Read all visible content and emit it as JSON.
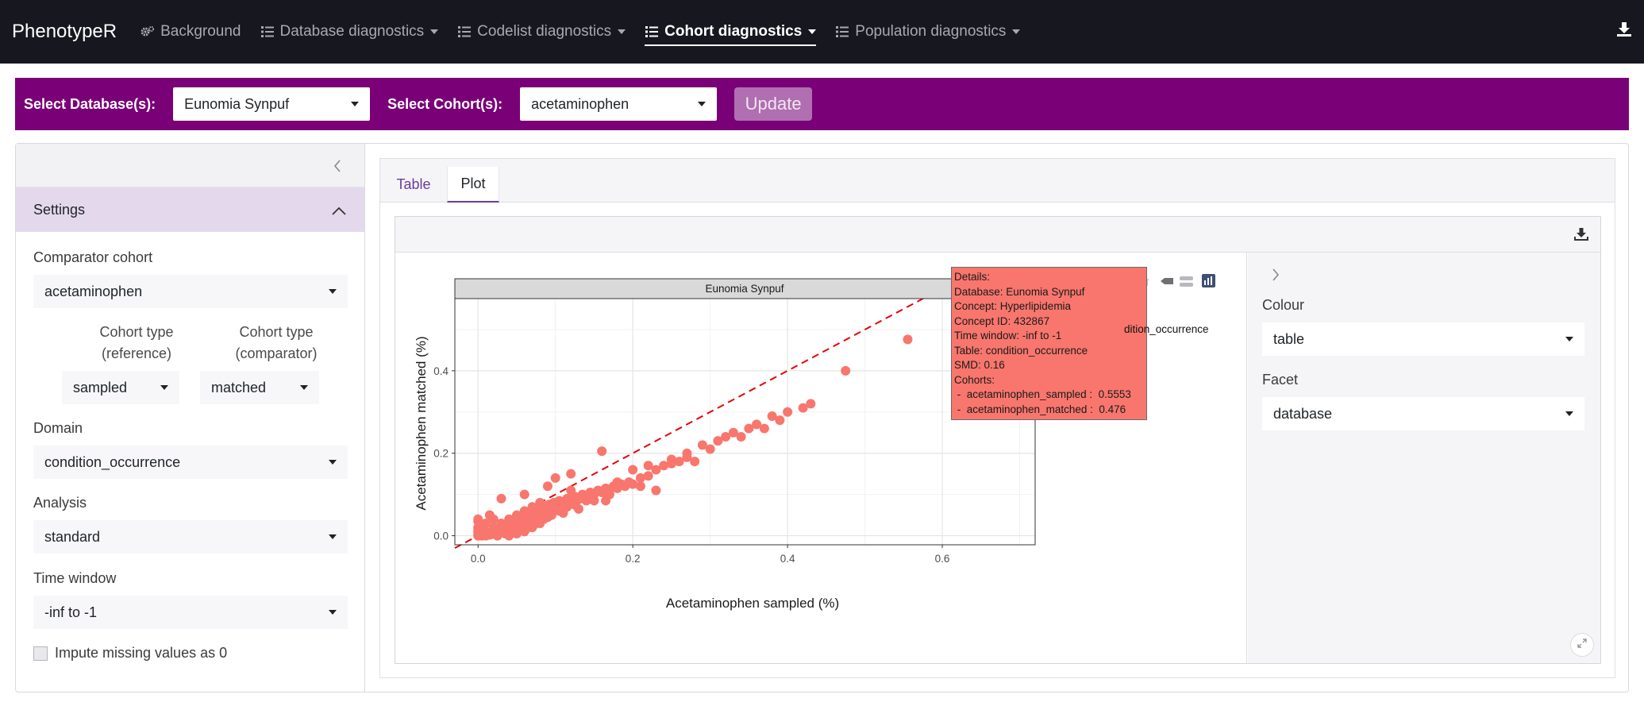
{
  "navbar": {
    "brand": "PhenotypeR",
    "items": [
      {
        "label": "Background",
        "icon": "gears-icon",
        "active": false,
        "dropdown": false
      },
      {
        "label": "Database diagnostics",
        "icon": "list-icon",
        "active": false,
        "dropdown": true
      },
      {
        "label": "Codelist diagnostics",
        "icon": "list-icon",
        "active": false,
        "dropdown": true
      },
      {
        "label": "Cohort diagnostics",
        "icon": "list-icon",
        "active": true,
        "dropdown": true
      },
      {
        "label": "Population diagnostics",
        "icon": "list-icon",
        "active": false,
        "dropdown": true
      }
    ],
    "download_icon": "download-icon"
  },
  "filters": {
    "database_label": "Select Database(s):",
    "database_value": "Eunomia Synpuf",
    "cohort_label": "Select Cohort(s):",
    "cohort_value": "acetaminophen",
    "update_label": "Update"
  },
  "sidebar": {
    "settings_title": "Settings",
    "comparator_label": "Comparator cohort",
    "comparator_value": "acetaminophen",
    "type_ref_label_1": "Cohort type",
    "type_ref_label_2": "(reference)",
    "type_ref_value": "sampled",
    "type_cmp_label_1": "Cohort type",
    "type_cmp_label_2": "(comparator)",
    "type_cmp_value": "matched",
    "domain_label": "Domain",
    "domain_value": "condition_occurrence",
    "analysis_label": "Analysis",
    "analysis_value": "standard",
    "timewindow_label": "Time window",
    "timewindow_value": "-inf to -1",
    "impute_label": "Impute missing values as 0"
  },
  "tabs": [
    {
      "label": "Table",
      "active": false
    },
    {
      "label": "Plot",
      "active": true
    }
  ],
  "plot_controls": {
    "colour_label": "Colour",
    "colour_value": "table",
    "facet_label": "Facet",
    "facet_value": "database"
  },
  "tooltip": {
    "lines": [
      "Details:",
      "Database: Eunomia Synpuf",
      "Concept: Hyperlipidemia",
      "Concept ID: 432867",
      "Time window: -inf to -1",
      "Table: condition_occurrence",
      "SMD: 0.16",
      "Cohorts:",
      " -  acetaminophen_sampled :  0.5553",
      " -  acetaminophen_matched :  0.476"
    ]
  },
  "legend_partial": "dition_occurrence",
  "chart_data": {
    "type": "scatter",
    "facet_label": "Eunomia Synpuf",
    "xlabel": "Acetaminophen sampled (%)",
    "ylabel": "Acetaminophen matched (%)",
    "x_ticks": [
      "0.0",
      "0.2",
      "0.4",
      "0.6"
    ],
    "y_ticks": [
      "0.0",
      "0.2",
      "0.4"
    ],
    "xlim": [
      -0.03,
      0.72
    ],
    "ylim": [
      -0.022,
      0.575
    ],
    "color": "#f8766d",
    "reference_line": {
      "type": "identity",
      "style": "dashed",
      "color": "#e8000b"
    },
    "points": [
      [
        0.0,
        0.0
      ],
      [
        0.0,
        0.005
      ],
      [
        0.0,
        0.01
      ],
      [
        0.0,
        0.015
      ],
      [
        0.0,
        0.02
      ],
      [
        0.002,
        0.025
      ],
      [
        0.003,
        0.03
      ],
      [
        0.0,
        0.035
      ],
      [
        0.0,
        0.04
      ],
      [
        0.005,
        0.0
      ],
      [
        0.008,
        0.003
      ],
      [
        0.01,
        0.0
      ],
      [
        0.012,
        0.006
      ],
      [
        0.015,
        0.002
      ],
      [
        0.018,
        0.01
      ],
      [
        0.02,
        0.004
      ],
      [
        0.022,
        0.012
      ],
      [
        0.025,
        0.008
      ],
      [
        0.028,
        0.015
      ],
      [
        0.03,
        0.01
      ],
      [
        0.032,
        0.02
      ],
      [
        0.035,
        0.012
      ],
      [
        0.038,
        0.025
      ],
      [
        0.04,
        0.018
      ],
      [
        0.042,
        0.03
      ],
      [
        0.045,
        0.022
      ],
      [
        0.048,
        0.035
      ],
      [
        0.05,
        0.028
      ],
      [
        0.052,
        0.04
      ],
      [
        0.055,
        0.032
      ],
      [
        0.058,
        0.045
      ],
      [
        0.06,
        0.036
      ],
      [
        0.062,
        0.05
      ],
      [
        0.065,
        0.04
      ],
      [
        0.068,
        0.055
      ],
      [
        0.07,
        0.045
      ],
      [
        0.072,
        0.06
      ],
      [
        0.075,
        0.05
      ],
      [
        0.078,
        0.062
      ],
      [
        0.08,
        0.055
      ],
      [
        0.082,
        0.068
      ],
      [
        0.085,
        0.058
      ],
      [
        0.088,
        0.072
      ],
      [
        0.09,
        0.062
      ],
      [
        0.092,
        0.076
      ],
      [
        0.095,
        0.066
      ],
      [
        0.098,
        0.08
      ],
      [
        0.1,
        0.07
      ],
      [
        0.105,
        0.085
      ],
      [
        0.11,
        0.075
      ],
      [
        0.115,
        0.09
      ],
      [
        0.12,
        0.08
      ],
      [
        0.125,
        0.095
      ],
      [
        0.13,
        0.088
      ],
      [
        0.135,
        0.1
      ],
      [
        0.14,
        0.092
      ],
      [
        0.145,
        0.105
      ],
      [
        0.15,
        0.1
      ],
      [
        0.155,
        0.11
      ],
      [
        0.16,
        0.105
      ],
      [
        0.165,
        0.115
      ],
      [
        0.17,
        0.11
      ],
      [
        0.175,
        0.12
      ],
      [
        0.18,
        0.115
      ],
      [
        0.185,
        0.125
      ],
      [
        0.19,
        0.12
      ],
      [
        0.195,
        0.13
      ],
      [
        0.2,
        0.125
      ],
      [
        0.21,
        0.14
      ],
      [
        0.22,
        0.145
      ],
      [
        0.23,
        0.16
      ],
      [
        0.24,
        0.17
      ],
      [
        0.25,
        0.175
      ],
      [
        0.26,
        0.18
      ],
      [
        0.27,
        0.19
      ],
      [
        0.28,
        0.18
      ],
      [
        0.29,
        0.22
      ],
      [
        0.3,
        0.21
      ],
      [
        0.31,
        0.23
      ],
      [
        0.32,
        0.24
      ],
      [
        0.33,
        0.25
      ],
      [
        0.34,
        0.24
      ],
      [
        0.35,
        0.26
      ],
      [
        0.36,
        0.27
      ],
      [
        0.37,
        0.26
      ],
      [
        0.38,
        0.29
      ],
      [
        0.39,
        0.28
      ],
      [
        0.4,
        0.3
      ],
      [
        0.42,
        0.31
      ],
      [
        0.43,
        0.32
      ],
      [
        0.475,
        0.4
      ],
      [
        0.5553,
        0.476
      ],
      [
        0.16,
        0.205
      ],
      [
        0.12,
        0.15
      ],
      [
        0.1,
        0.14
      ],
      [
        0.09,
        0.12
      ],
      [
        0.03,
        0.09
      ],
      [
        0.06,
        0.1
      ],
      [
        0.2,
        0.16
      ],
      [
        0.015,
        0.05
      ],
      [
        0.02,
        0.04
      ],
      [
        0.01,
        0.03
      ],
      [
        0.005,
        0.02
      ],
      [
        0.025,
        0.0
      ],
      [
        0.035,
        0.005
      ],
      [
        0.045,
        0.01
      ],
      [
        0.055,
        0.015
      ],
      [
        0.065,
        0.02
      ],
      [
        0.075,
        0.03
      ],
      [
        0.085,
        0.04
      ],
      [
        0.095,
        0.05
      ],
      [
        0.105,
        0.06
      ],
      [
        0.115,
        0.07
      ],
      [
        0.125,
        0.075
      ],
      [
        0.14,
        0.085
      ],
      [
        0.15,
        0.085
      ],
      [
        0.17,
        0.1
      ],
      [
        0.03,
        0.03
      ],
      [
        0.04,
        0.04
      ],
      [
        0.05,
        0.05
      ],
      [
        0.06,
        0.06
      ],
      [
        0.07,
        0.07
      ],
      [
        0.08,
        0.08
      ],
      [
        0.01,
        0.01
      ],
      [
        0.02,
        0.02
      ],
      [
        0.04,
        0.0
      ],
      [
        0.05,
        0.005
      ],
      [
        0.06,
        0.01
      ],
      [
        0.07,
        0.02
      ],
      [
        0.08,
        0.03
      ],
      [
        0.09,
        0.045
      ],
      [
        0.11,
        0.055
      ],
      [
        0.13,
        0.065
      ],
      [
        0.12,
        0.11
      ],
      [
        0.18,
        0.13
      ],
      [
        0.22,
        0.17
      ],
      [
        0.25,
        0.185
      ],
      [
        0.27,
        0.2
      ],
      [
        0.21,
        0.12
      ],
      [
        0.23,
        0.11
      ],
      [
        0.165,
        0.085
      ]
    ]
  }
}
